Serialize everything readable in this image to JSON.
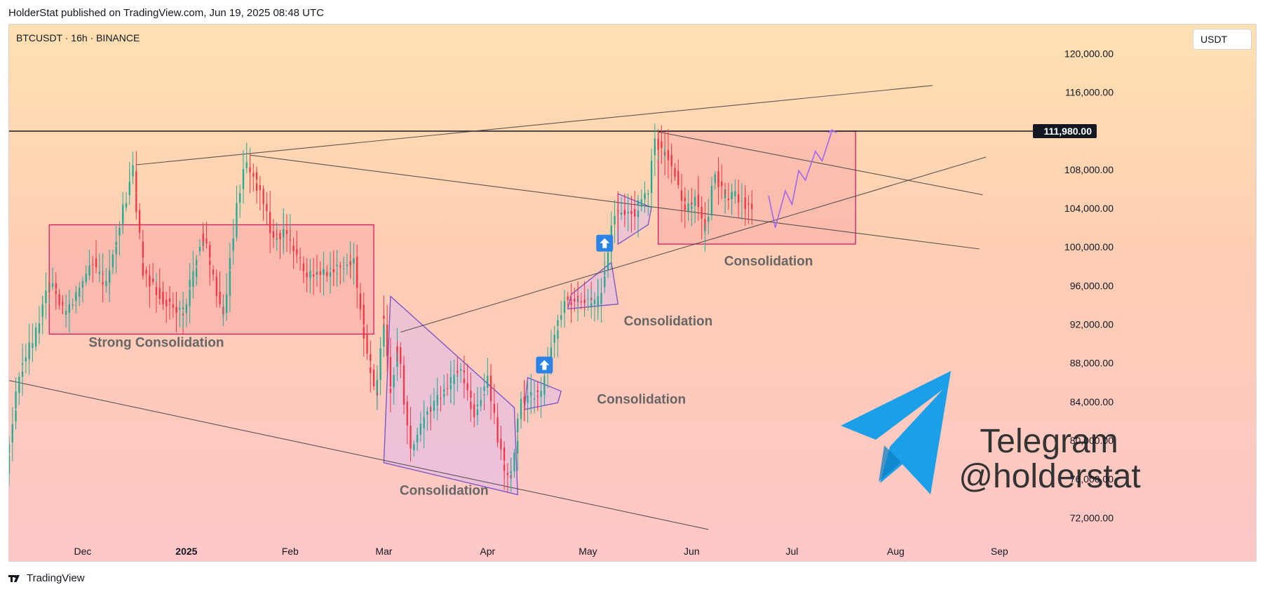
{
  "header": {
    "published_text": "HolderStat published on TradingView.com, Jun 19, 2025 08:48 UTC"
  },
  "chart_header": {
    "symbol_text": "BTCUSDT · 16h · BINANCE",
    "currency": "USDT"
  },
  "footer": {
    "brand": "TradingView"
  },
  "branding_overlay": {
    "line1": "Telegram",
    "line2": "@holderstat"
  },
  "colors": {
    "bg_top": "#ffe0b2",
    "bg_bottom": "#ffc7c8",
    "up": "#22ab94",
    "down": "#f23645",
    "zone_fill": "#f7a5a8",
    "zone_stroke": "#d81b60",
    "triangle_fill": "#d6b8f3",
    "triangle_stroke": "#7e57c2",
    "path_stroke": "#a066f0",
    "line": "#3f3f3f",
    "horizontal_line": "#131722",
    "price_badge_bg": "#131722",
    "arrow_badge_bg": "#2b83e6",
    "text_muted": "#666666",
    "telegram_blue": "#1a9fe8"
  },
  "chart_data": {
    "type": "candlestick",
    "symbol": "BTCUSDT",
    "interval": "16h",
    "exchange": "BINANCE",
    "y_axis": {
      "ticks": [
        120000,
        116000,
        108000,
        104000,
        100000,
        96000,
        92000,
        88000,
        84000,
        80000,
        76000,
        72000
      ],
      "tick_labels": [
        "120,000.00",
        "116,000.00",
        "108,000.00",
        "104,000.00",
        "100,000.00",
        "96,000.00",
        "92,000.00",
        "88,000.00",
        "84,000.00",
        "80,000.00",
        "76,000.00",
        "72,000.00"
      ],
      "ylim": [
        70000,
        123000
      ]
    },
    "x_axis": {
      "ticks": [
        "2024-12-01",
        "2025-01-01",
        "2025-02-01",
        "2025-03-01",
        "2025-04-01",
        "2025-05-01",
        "2025-06-01",
        "2025-07-01",
        "2025-08-01",
        "2025-09-01"
      ],
      "tick_labels": [
        "Dec",
        "2025",
        "Feb",
        "Mar",
        "Apr",
        "May",
        "Jun",
        "Jul",
        "Aug",
        "Sep"
      ],
      "xlim": [
        "2024-11-09",
        "2025-09-11"
      ]
    },
    "price_line": {
      "price": 111980,
      "label": "111,980.00"
    },
    "candle_anchors": [
      {
        "t": "2024-11-09",
        "p": 76500
      },
      {
        "t": "2024-11-13",
        "p": 87000
      },
      {
        "t": "2024-11-18",
        "p": 91000
      },
      {
        "t": "2024-11-22",
        "p": 96500
      },
      {
        "t": "2024-11-27",
        "p": 93000
      },
      {
        "t": "2024-12-05",
        "p": 98500
      },
      {
        "t": "2024-12-09",
        "p": 96000
      },
      {
        "t": "2024-12-17",
        "p": 108000
      },
      {
        "t": "2024-12-20",
        "p": 97500
      },
      {
        "t": "2024-12-26",
        "p": 94500
      },
      {
        "t": "2025-01-01",
        "p": 93000
      },
      {
        "t": "2025-01-07",
        "p": 101500
      },
      {
        "t": "2025-01-13",
        "p": 92500
      },
      {
        "t": "2025-01-17",
        "p": 104000
      },
      {
        "t": "2025-01-20",
        "p": 109000
      },
      {
        "t": "2025-01-24",
        "p": 105500
      },
      {
        "t": "2025-01-28",
        "p": 101000
      },
      {
        "t": "2025-02-01",
        "p": 101500
      },
      {
        "t": "2025-02-07",
        "p": 97000
      },
      {
        "t": "2025-02-14",
        "p": 97500
      },
      {
        "t": "2025-02-21",
        "p": 98500
      },
      {
        "t": "2025-02-25",
        "p": 89000
      },
      {
        "t": "2025-02-28",
        "p": 84500
      },
      {
        "t": "2025-03-02",
        "p": 94000
      },
      {
        "t": "2025-03-04",
        "p": 84000
      },
      {
        "t": "2025-03-06",
        "p": 90500
      },
      {
        "t": "2025-03-10",
        "p": 78500
      },
      {
        "t": "2025-03-14",
        "p": 82500
      },
      {
        "t": "2025-03-20",
        "p": 85000
      },
      {
        "t": "2025-03-25",
        "p": 87500
      },
      {
        "t": "2025-03-29",
        "p": 82500
      },
      {
        "t": "2025-04-02",
        "p": 86500
      },
      {
        "t": "2025-04-07",
        "p": 77000
      },
      {
        "t": "2025-04-09",
        "p": 76000
      },
      {
        "t": "2025-04-12",
        "p": 84000
      },
      {
        "t": "2025-04-18",
        "p": 85000
      },
      {
        "t": "2025-04-22",
        "p": 91000
      },
      {
        "t": "2025-04-25",
        "p": 94500
      },
      {
        "t": "2025-04-30",
        "p": 94500
      },
      {
        "t": "2025-05-05",
        "p": 94000
      },
      {
        "t": "2025-05-08",
        "p": 99000
      },
      {
        "t": "2025-05-10",
        "p": 103500
      },
      {
        "t": "2025-05-16",
        "p": 103500
      },
      {
        "t": "2025-05-20",
        "p": 106000
      },
      {
        "t": "2025-05-22",
        "p": 111000
      },
      {
        "t": "2025-05-27",
        "p": 109000
      },
      {
        "t": "2025-05-31",
        "p": 104000
      },
      {
        "t": "2025-06-04",
        "p": 105000
      },
      {
        "t": "2025-06-06",
        "p": 101500
      },
      {
        "t": "2025-06-09",
        "p": 107500
      },
      {
        "t": "2025-06-12",
        "p": 105000
      },
      {
        "t": "2025-06-15",
        "p": 105500
      },
      {
        "t": "2025-06-18",
        "p": 104500
      },
      {
        "t": "2025-06-19",
        "p": 104000
      }
    ],
    "annotations": {
      "horizontal_line": {
        "price": 111980
      },
      "trendlines": [
        {
          "from": {
            "t": "2024-12-17",
            "p": 108500
          },
          "to": {
            "t": "2025-08-12",
            "p": 116700
          }
        },
        {
          "from": {
            "t": "2025-01-20",
            "p": 109500
          },
          "to": {
            "t": "2025-08-26",
            "p": 99800
          }
        },
        {
          "from": {
            "t": "2025-05-22",
            "p": 111900
          },
          "to": {
            "t": "2025-08-27",
            "p": 105400
          }
        },
        {
          "from": {
            "t": "2024-11-09",
            "p": 86200
          },
          "to": {
            "t": "2025-06-06",
            "p": 70800
          }
        },
        {
          "from": {
            "t": "2025-03-06",
            "p": 91200
          },
          "to": {
            "t": "2025-08-28",
            "p": 109300
          }
        }
      ],
      "rectangles": [
        {
          "from": {
            "t": "2024-11-21",
            "p": 102300
          },
          "to": {
            "t": "2025-02-26",
            "p": 91000
          }
        },
        {
          "from": {
            "t": "2025-05-22",
            "p": 111980
          },
          "to": {
            "t": "2025-07-20",
            "p": 100300
          }
        }
      ],
      "triangles": [
        [
          {
            "t": "2025-03-01",
            "p": 77700
          },
          {
            "t": "2025-03-03",
            "p": 94900
          },
          {
            "t": "2025-04-09",
            "p": 83400
          },
          {
            "t": "2025-04-10",
            "p": 74400
          }
        ],
        [
          {
            "t": "2025-04-12",
            "p": 83200
          },
          {
            "t": "2025-04-13",
            "p": 86500
          },
          {
            "t": "2025-04-23",
            "p": 85100
          },
          {
            "t": "2025-04-22",
            "p": 83900
          }
        ],
        [
          {
            "t": "2025-04-25",
            "p": 93600
          },
          {
            "t": "2025-04-26",
            "p": 95100
          },
          {
            "t": "2025-05-08",
            "p": 98400
          },
          {
            "t": "2025-05-10",
            "p": 94100
          }
        ],
        [
          {
            "t": "2025-05-10",
            "p": 100300
          },
          {
            "t": "2025-05-10",
            "p": 105500
          },
          {
            "t": "2025-05-20",
            "p": 104100
          },
          {
            "t": "2025-05-19",
            "p": 102300
          }
        ]
      ],
      "projection_path": [
        {
          "t": "2025-06-24",
          "p": 105300
        },
        {
          "t": "2025-06-26",
          "p": 102000
        },
        {
          "t": "2025-06-29",
          "p": 105800
        },
        {
          "t": "2025-07-01",
          "p": 104400
        },
        {
          "t": "2025-07-03",
          "p": 107900
        },
        {
          "t": "2025-07-05",
          "p": 106900
        },
        {
          "t": "2025-07-08",
          "p": 109900
        },
        {
          "t": "2025-07-10",
          "p": 108900
        },
        {
          "t": "2025-07-13",
          "p": 112100
        }
      ],
      "arrow_badges": [
        {
          "t": "2025-04-18",
          "p": 87800
        },
        {
          "t": "2025-05-06",
          "p": 100400
        }
      ],
      "labels": [
        {
          "text": "Strong Consolidation",
          "t": "2024-12-23",
          "p": 89700
        },
        {
          "text": "Consolidation",
          "t": "2025-03-19",
          "p": 74400
        },
        {
          "text": "Consolidation",
          "t": "2025-05-17",
          "p": 83800
        },
        {
          "text": "Consolidation",
          "t": "2025-05-25",
          "p": 91900
        },
        {
          "text": "Consolidation",
          "t": "2025-06-24",
          "p": 98100
        }
      ]
    }
  }
}
